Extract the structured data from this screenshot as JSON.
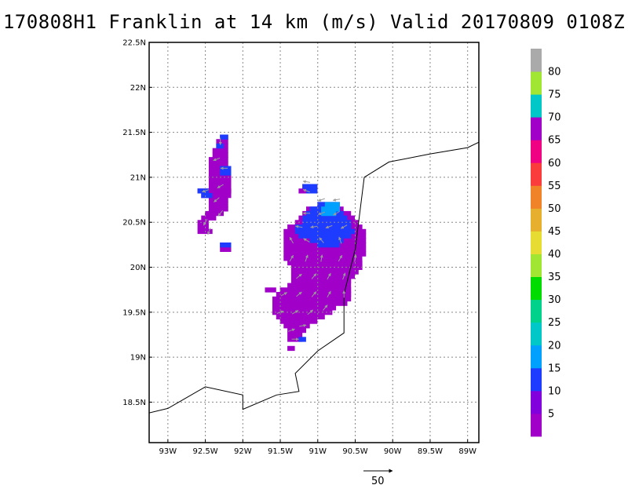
{
  "chart_data": {
    "type": "heatmap",
    "title": "170808H1 Franklin at 14 km (m/s) Valid 20170809 0108Z",
    "xlim": [
      -93.25,
      -88.85
    ],
    "ylim": [
      18.05,
      22.5
    ],
    "x_ticks": [
      {
        "value": -93.0,
        "label": "93W"
      },
      {
        "value": -92.5,
        "label": "92.5W"
      },
      {
        "value": -92.0,
        "label": "92W"
      },
      {
        "value": -91.5,
        "label": "91.5W"
      },
      {
        "value": -91.0,
        "label": "91W"
      },
      {
        "value": -90.5,
        "label": "90.5W"
      },
      {
        "value": -90.0,
        "label": "90W"
      },
      {
        "value": -89.5,
        "label": "89.5W"
      },
      {
        "value": -89.0,
        "label": "89W"
      }
    ],
    "y_ticks": [
      {
        "value": 18.5,
        "label": "18.5N"
      },
      {
        "value": 19.0,
        "label": "19N"
      },
      {
        "value": 19.5,
        "label": "19.5N"
      },
      {
        "value": 20.0,
        "label": "20N"
      },
      {
        "value": 20.5,
        "label": "20.5N"
      },
      {
        "value": 21.0,
        "label": "21N"
      },
      {
        "value": 21.5,
        "label": "21.5N"
      },
      {
        "value": 22.0,
        "label": "22N"
      },
      {
        "value": 22.5,
        "label": "22.5N"
      }
    ],
    "grid": true,
    "colorbar": {
      "colors": [
        "#a000c8",
        "#8200dc",
        "#1e3cff",
        "#00a0ff",
        "#00c8c8",
        "#00d28c",
        "#00dc00",
        "#a0e632",
        "#e6dc32",
        "#e6af2d",
        "#f08228",
        "#fa3c3c",
        "#f00082",
        "#a000c8",
        "#00c8c8",
        "#a0e632",
        "#aaaaaa"
      ],
      "labels": [
        "5",
        "10",
        "15",
        "20",
        "25",
        "30",
        "35",
        "40",
        "45",
        "50",
        "55",
        "60",
        "65",
        "70",
        "75",
        "80"
      ]
    },
    "coastline": [
      [
        -93.3,
        18.37
      ],
      [
        -93.0,
        18.43
      ],
      [
        -92.5,
        18.67
      ],
      [
        -92.0,
        18.58
      ],
      [
        -92.0,
        18.42
      ],
      [
        -91.55,
        18.58
      ],
      [
        -91.25,
        18.62
      ],
      [
        -91.3,
        18.82
      ],
      [
        -91.0,
        19.07
      ],
      [
        -90.65,
        19.27
      ],
      [
        -90.65,
        19.7
      ],
      [
        -90.5,
        20.2
      ],
      [
        -90.38,
        21.0
      ],
      [
        -90.05,
        21.17
      ],
      [
        -89.5,
        21.26
      ],
      [
        -89.0,
        21.33
      ],
      [
        -88.85,
        21.39
      ]
    ],
    "wind_field_regions": [
      {
        "rows": [
          [
            21.45,
            -92.28,
            -92.22
          ],
          [
            21.4,
            -92.33,
            -92.22
          ],
          [
            21.35,
            -92.33,
            -92.22
          ],
          [
            21.3,
            -92.38,
            -92.22
          ],
          [
            21.25,
            -92.38,
            -92.22
          ],
          [
            21.2,
            -92.43,
            -92.22
          ],
          [
            21.15,
            -92.43,
            -92.22
          ],
          [
            21.1,
            -92.43,
            -92.18
          ],
          [
            21.05,
            -92.43,
            -92.18
          ],
          [
            21.0,
            -92.43,
            -92.18
          ],
          [
            20.95,
            -92.43,
            -92.18
          ],
          [
            20.9,
            -92.43,
            -92.18
          ],
          [
            20.85,
            -92.58,
            -92.18
          ],
          [
            20.8,
            -92.53,
            -92.18
          ],
          [
            20.75,
            -92.43,
            -92.22
          ],
          [
            20.7,
            -92.43,
            -92.22
          ],
          [
            20.65,
            -92.43,
            -92.22
          ],
          [
            20.6,
            -92.48,
            -92.28
          ],
          [
            20.55,
            -92.53,
            -92.38
          ],
          [
            20.5,
            -92.58,
            -92.48
          ],
          [
            20.45,
            -92.58,
            -92.48
          ],
          [
            20.4,
            -92.58,
            -92.43
          ],
          [
            20.25,
            -92.28,
            -92.18
          ],
          [
            20.2,
            -92.28,
            -92.18
          ]
        ]
      },
      {
        "rows": [
          [
            20.9,
            -91.18,
            -91.03
          ],
          [
            20.85,
            -91.23,
            -91.03
          ],
          [
            20.7,
            -90.98,
            -90.73
          ],
          [
            20.65,
            -91.13,
            -90.68
          ],
          [
            20.6,
            -91.18,
            -90.58
          ],
          [
            20.55,
            -91.23,
            -90.53
          ],
          [
            20.5,
            -91.28,
            -90.48
          ],
          [
            20.45,
            -91.38,
            -90.43
          ],
          [
            20.4,
            -91.43,
            -90.38
          ],
          [
            20.35,
            -91.43,
            -90.38
          ],
          [
            20.3,
            -91.43,
            -90.38
          ],
          [
            20.25,
            -91.43,
            -90.38
          ],
          [
            20.2,
            -91.43,
            -90.38
          ],
          [
            20.15,
            -91.43,
            -90.38
          ],
          [
            20.1,
            -91.43,
            -90.43
          ],
          [
            20.05,
            -91.38,
            -90.43
          ],
          [
            20.0,
            -91.33,
            -90.43
          ],
          [
            19.95,
            -91.33,
            -90.48
          ],
          [
            19.9,
            -91.33,
            -90.53
          ],
          [
            19.85,
            -91.33,
            -90.58
          ],
          [
            19.8,
            -91.38,
            -90.58
          ],
          [
            19.75,
            -91.48,
            -90.58
          ],
          [
            19.7,
            -91.53,
            -90.58
          ],
          [
            19.65,
            -91.58,
            -90.58
          ],
          [
            19.6,
            -91.58,
            -90.63
          ],
          [
            19.55,
            -91.58,
            -90.78
          ],
          [
            19.5,
            -91.58,
            -90.83
          ],
          [
            19.45,
            -91.53,
            -90.93
          ],
          [
            19.4,
            -91.48,
            -91.03
          ],
          [
            19.35,
            -91.43,
            -91.13
          ],
          [
            19.3,
            -91.38,
            -91.18
          ],
          [
            19.25,
            -91.38,
            -91.23
          ],
          [
            19.2,
            -91.38,
            -91.23
          ],
          [
            19.1,
            -91.38,
            -91.33
          ]
        ]
      },
      {
        "rows": [
          [
            19.75,
            -91.68,
            -91.58
          ]
        ]
      }
    ],
    "strong_wind_regions": [
      {
        "rows": [
          [
            21.45,
            -92.28,
            -92.22
          ],
          [
            21.35,
            -92.33,
            -92.28
          ],
          [
            21.1,
            -92.28,
            -92.18
          ],
          [
            21.05,
            -92.28,
            -92.18
          ],
          [
            20.85,
            -92.58,
            -92.48
          ],
          [
            20.8,
            -92.53,
            -92.43
          ],
          [
            20.25,
            -92.28,
            -92.18
          ]
        ]
      },
      {
        "rows": [
          [
            20.9,
            -91.18,
            -91.03
          ],
          [
            20.85,
            -91.13,
            -91.03
          ],
          [
            20.7,
            -90.98,
            -90.78
          ],
          [
            20.65,
            -91.08,
            -90.73
          ],
          [
            20.6,
            -91.13,
            -90.68
          ],
          [
            20.55,
            -91.18,
            -90.63
          ],
          [
            20.5,
            -91.18,
            -90.58
          ],
          [
            20.45,
            -91.28,
            -90.58
          ],
          [
            20.4,
            -91.28,
            -90.53
          ],
          [
            20.35,
            -91.23,
            -90.58
          ],
          [
            20.3,
            -91.08,
            -90.68
          ],
          [
            20.25,
            -90.98,
            -90.73
          ]
        ]
      },
      {
        "rows": [
          [
            19.2,
            -91.23,
            -91.18
          ]
        ]
      }
    ],
    "strongest_wind_regions": [
      {
        "rows": [
          [
            20.7,
            -90.88,
            -90.73
          ],
          [
            20.65,
            -90.93,
            -90.73
          ],
          [
            20.6,
            -90.93,
            -90.78
          ]
        ]
      }
    ],
    "wind_vectors": [
      [
        -92.3,
        21.4,
        -90
      ],
      [
        -92.35,
        21.2,
        200
      ],
      [
        -92.25,
        21.1,
        180
      ],
      [
        -92.5,
        20.85,
        200
      ],
      [
        -92.3,
        20.9,
        210
      ],
      [
        -92.35,
        20.75,
        220
      ],
      [
        -92.3,
        20.6,
        230
      ],
      [
        -92.5,
        20.5,
        240
      ],
      [
        -92.45,
        20.4,
        250
      ],
      [
        -91.15,
        20.95,
        170
      ],
      [
        -91.15,
        20.85,
        160
      ],
      [
        -90.95,
        20.75,
        200
      ],
      [
        -90.75,
        20.75,
        190
      ],
      [
        -91.15,
        20.6,
        180
      ],
      [
        -90.95,
        20.6,
        200
      ],
      [
        -90.75,
        20.6,
        210
      ],
      [
        -91.25,
        20.45,
        170
      ],
      [
        -91.05,
        20.45,
        190
      ],
      [
        -90.85,
        20.45,
        200
      ],
      [
        -90.65,
        20.45,
        210
      ],
      [
        -91.35,
        20.3,
        120
      ],
      [
        -91.15,
        20.3,
        150
      ],
      [
        -90.95,
        20.3,
        130
      ],
      [
        -90.7,
        20.3,
        110
      ],
      [
        -91.35,
        20.1,
        60
      ],
      [
        -91.15,
        20.1,
        70
      ],
      [
        -90.95,
        20.1,
        80
      ],
      [
        -90.7,
        20.1,
        60
      ],
      [
        -90.5,
        20.1,
        80
      ],
      [
        -91.25,
        19.9,
        40
      ],
      [
        -91.05,
        19.9,
        50
      ],
      [
        -90.85,
        19.9,
        60
      ],
      [
        -90.65,
        19.9,
        70
      ],
      [
        -91.45,
        19.7,
        30
      ],
      [
        -91.25,
        19.7,
        40
      ],
      [
        -91.05,
        19.7,
        50
      ],
      [
        -90.85,
        19.7,
        60
      ],
      [
        -90.65,
        19.7,
        90
      ],
      [
        -91.5,
        19.5,
        20
      ],
      [
        -91.3,
        19.5,
        30
      ],
      [
        -91.1,
        19.5,
        40
      ],
      [
        -90.9,
        19.55,
        50
      ],
      [
        -91.35,
        19.3,
        20
      ],
      [
        -91.2,
        19.35,
        10
      ],
      [
        -91.3,
        19.2,
        0
      ]
    ],
    "reference_vector_label": "50"
  }
}
